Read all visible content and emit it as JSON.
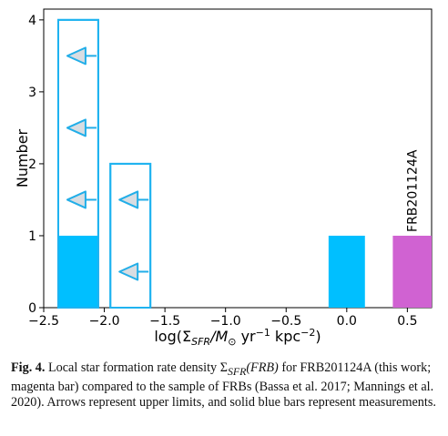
{
  "figure": {
    "caption_label": "Fig. 4.",
    "caption_pre": "Local star formation rate density Σ",
    "caption_sub": "SFR",
    "caption_math": "(FRB)",
    "caption_post": " for FRB201124A (this work; magenta bar) compared to the sample of FRBs (Bassa et al. 2017; Mannings et al. 2020). Arrows represent upper limits, and solid blue bars represent measurements."
  },
  "chart_data": {
    "type": "bar",
    "subtype": "histogram",
    "title": "",
    "xlabel_main": "log(Σ",
    "xlabel_sub": "SFR",
    "xlabel_mid": "/M",
    "xlabel_sun": "⊙",
    "xlabel_unit1": " yr",
    "xlabel_exp1": "−1",
    "xlabel_unit2": " kpc",
    "xlabel_exp2": "−2",
    "xlabel_close": ")",
    "ylabel": "Number",
    "xlim": [
      -2.5,
      0.7
    ],
    "ylim": [
      0,
      4.15
    ],
    "xticks": [
      {
        "value": -2.5,
        "label": "−2.5"
      },
      {
        "value": -2.0,
        "label": "−2.0"
      },
      {
        "value": -1.5,
        "label": "−1.5"
      },
      {
        "value": -1.0,
        "label": "−1.0"
      },
      {
        "value": -0.5,
        "label": "−0.5"
      },
      {
        "value": 0.0,
        "label": "0.0"
      },
      {
        "value": 0.5,
        "label": "0.5"
      }
    ],
    "yticks": [
      {
        "value": 0,
        "label": "0"
      },
      {
        "value": 1,
        "label": "1"
      },
      {
        "value": 2,
        "label": "2"
      },
      {
        "value": 3,
        "label": "3"
      },
      {
        "value": 4,
        "label": "4"
      }
    ],
    "colors": {
      "measurement": "#00bfff",
      "upper_limit_edge": "#1fb3f0",
      "frb": "#d062d2",
      "arrow_fill": "#d8dde2",
      "arrow_edge": "#22aee8"
    },
    "series": [
      {
        "kind": "upper_limit_outline",
        "bins": [
          {
            "x0": -2.38,
            "x1": -2.05,
            "count": 4
          },
          {
            "x0": -1.95,
            "x1": -1.62,
            "count": 2
          }
        ]
      },
      {
        "kind": "measurement_filled",
        "bins": [
          {
            "x0": -2.38,
            "x1": -2.05,
            "count": 1
          },
          {
            "x0": -0.15,
            "x1": 0.15,
            "count": 1
          }
        ]
      },
      {
        "kind": "frb_filled",
        "bins": [
          {
            "x0": 0.38,
            "x1": 0.7,
            "count": 1
          }
        ]
      }
    ],
    "arrows": [
      {
        "x": -2.14,
        "y": 3.5
      },
      {
        "x": -2.14,
        "y": 2.5
      },
      {
        "x": -2.14,
        "y": 1.5
      },
      {
        "x": -1.71,
        "y": 1.5
      },
      {
        "x": -1.71,
        "y": 0.5
      }
    ],
    "annotations": [
      {
        "text": "FRB201124A",
        "x": 0.54,
        "y": 1.0,
        "rotation": -90
      }
    ]
  }
}
